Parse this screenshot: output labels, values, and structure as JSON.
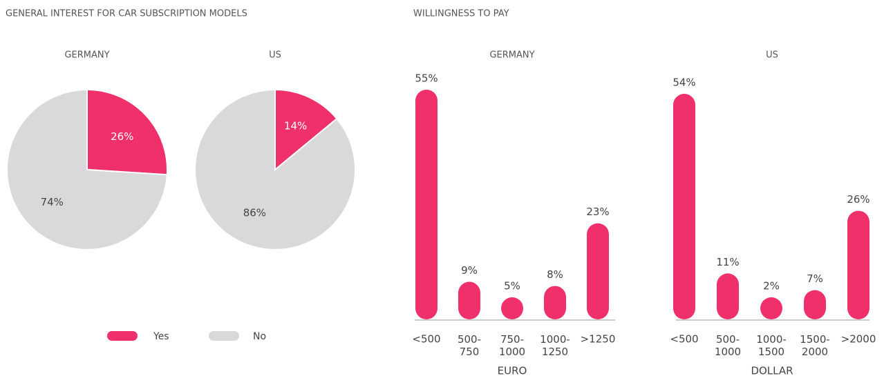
{
  "sections": [
    "GENERAL INTEREST FOR CAR SUBSCRIPTION MODELS",
    "WILLINGNESS TO PAY"
  ],
  "chart_data": [
    {
      "type": "pie",
      "title": "GERMANY",
      "categories": [
        "Yes",
        "No"
      ],
      "values": [
        26,
        74
      ],
      "value_labels": [
        "26%",
        "74%"
      ],
      "colors": [
        "#f0306a",
        "#d9d9db"
      ]
    },
    {
      "type": "pie",
      "title": "US",
      "categories": [
        "Yes",
        "No"
      ],
      "values": [
        14,
        86
      ],
      "value_labels": [
        "14%",
        "86%"
      ],
      "colors": [
        "#f0306a",
        "#d9d9db"
      ]
    },
    {
      "type": "bar",
      "title": "GERMANY",
      "categories": [
        "<500",
        "500-750",
        "750-1000",
        "1000-1250",
        ">1250"
      ],
      "values": [
        55,
        9,
        5,
        8,
        23
      ],
      "value_labels": [
        "55%",
        "9%",
        "5%",
        "8%",
        "23%"
      ],
      "xlabel": "EURO",
      "color": "#f0306a",
      "ylim": [
        0,
        55
      ]
    },
    {
      "type": "bar",
      "title": "US",
      "categories": [
        "<500",
        "500-1000",
        "1000-1500",
        "1500-2000",
        ">2000"
      ],
      "values": [
        54,
        11,
        2,
        7,
        26
      ],
      "value_labels": [
        "54%",
        "11%",
        "2%",
        "7%",
        "26%"
      ],
      "xlabel": "DOLLAR",
      "color": "#f0306a",
      "ylim": [
        0,
        55
      ]
    }
  ]
}
